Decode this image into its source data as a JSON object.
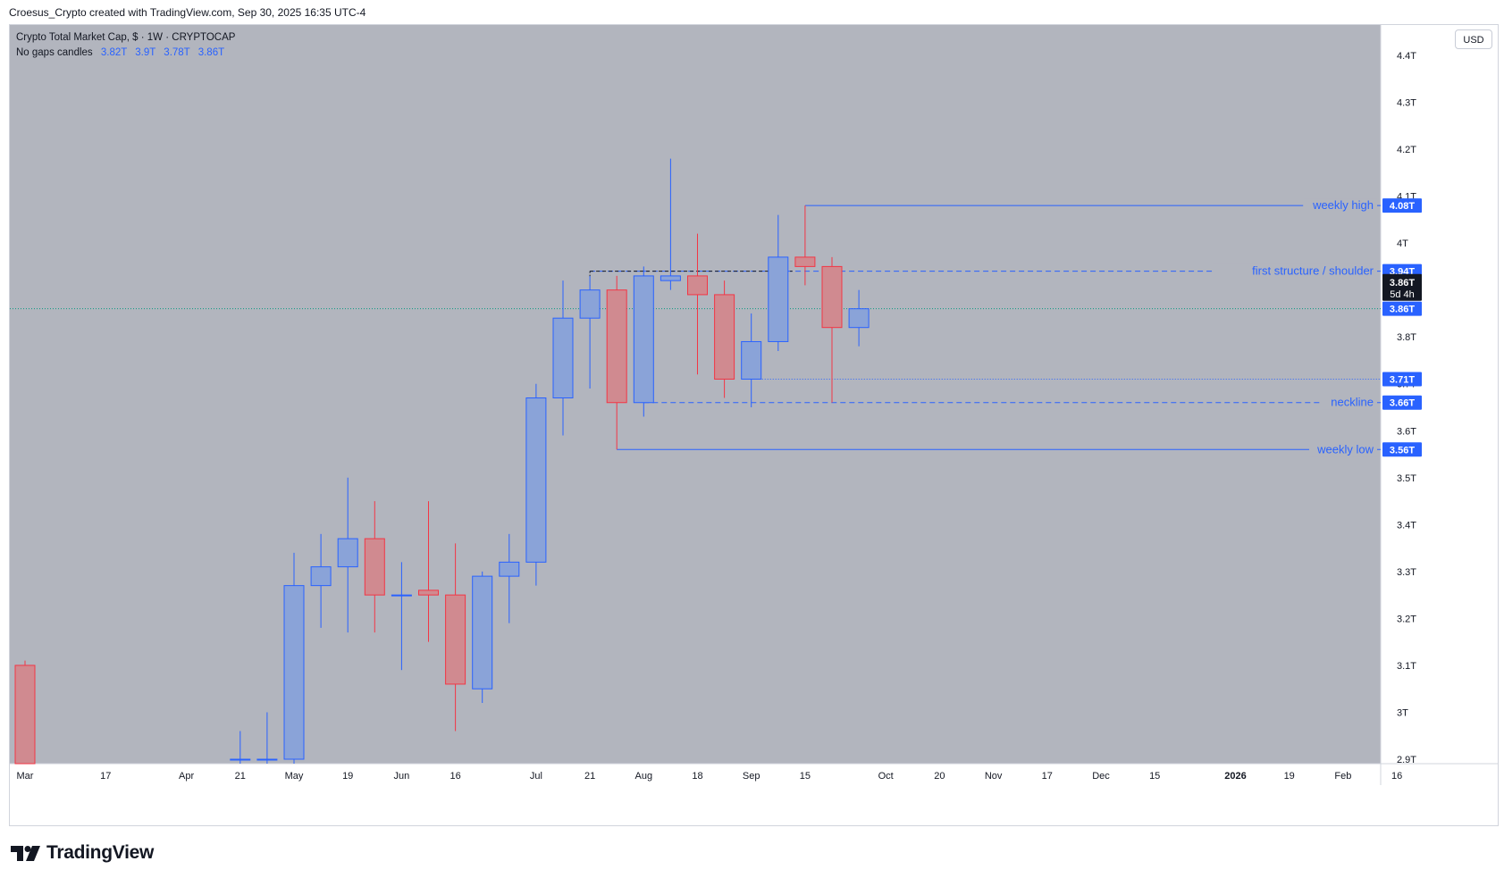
{
  "header": {
    "attribution": "Croesus_Crypto created with TradingView.com, Sep 30, 2025 16:35 UTC-4"
  },
  "legend": {
    "symbol": "Crypto Total Market Cap, $ · 1W · CRYPTOCAP",
    "style_label": "No gaps candles",
    "ohlc": [
      "3.82T",
      "3.9T",
      "3.78T",
      "3.86T"
    ]
  },
  "currency": "USD",
  "brand": {
    "name": "TradingView"
  },
  "colors": {
    "background": "#b2b5be",
    "bull": "#8aa3d8",
    "bull_border": "#2962ff",
    "bear": "#d08a90",
    "bear_border": "#f23645",
    "annotation": "#2962ff",
    "tag": "#2962ff"
  },
  "chart_data": {
    "type": "candlestick",
    "interval": "1W",
    "y_unit": "T",
    "ylim": [
      2.9,
      4.4
    ],
    "y_ticks": [
      {
        "value": 4.4,
        "label": "4.4T"
      },
      {
        "value": 4.3,
        "label": "4.3T"
      },
      {
        "value": 4.2,
        "label": "4.2T"
      },
      {
        "value": 4.1,
        "label": "4.1T"
      },
      {
        "value": 4.0,
        "label": "4T"
      },
      {
        "value": 3.9,
        "label": "3.9T"
      },
      {
        "value": 3.8,
        "label": "3.8T"
      },
      {
        "value": 3.7,
        "label": "3.7T"
      },
      {
        "value": 3.6,
        "label": "3.6T"
      },
      {
        "value": 3.5,
        "label": "3.5T"
      },
      {
        "value": 3.4,
        "label": "3.4T"
      },
      {
        "value": 3.3,
        "label": "3.3T"
      },
      {
        "value": 3.2,
        "label": "3.2T"
      },
      {
        "value": 3.1,
        "label": "3.1T"
      },
      {
        "value": 3.0,
        "label": "3T"
      },
      {
        "value": 2.9,
        "label": "2.9T"
      }
    ],
    "x_ticks": [
      {
        "date": "2025-02-24",
        "label": "Mar"
      },
      {
        "date": "2025-03-17",
        "label": "17"
      },
      {
        "date": "2025-04-07",
        "label": "Apr"
      },
      {
        "date": "2025-04-21",
        "label": "21"
      },
      {
        "date": "2025-05-05",
        "label": "May"
      },
      {
        "date": "2025-05-19",
        "label": "19"
      },
      {
        "date": "2025-06-02",
        "label": "Jun"
      },
      {
        "date": "2025-06-16",
        "label": "16"
      },
      {
        "date": "2025-07-07",
        "label": "Jul"
      },
      {
        "date": "2025-07-21",
        "label": "21"
      },
      {
        "date": "2025-08-04",
        "label": "Aug"
      },
      {
        "date": "2025-08-18",
        "label": "18"
      },
      {
        "date": "2025-09-01",
        "label": "Sep"
      },
      {
        "date": "2025-09-15",
        "label": "15"
      },
      {
        "date": "2025-10-06",
        "label": "Oct"
      },
      {
        "date": "2025-10-20",
        "label": "20"
      },
      {
        "date": "2025-11-03",
        "label": "Nov"
      },
      {
        "date": "2025-11-17",
        "label": "17"
      },
      {
        "date": "2025-12-01",
        "label": "Dec"
      },
      {
        "date": "2025-12-15",
        "label": "15"
      },
      {
        "date": "2026-01-05",
        "label": "2026",
        "bold": true
      },
      {
        "date": "2026-01-19",
        "label": "19"
      },
      {
        "date": "2026-02-02",
        "label": "Feb"
      },
      {
        "date": "2026-02-16",
        "label": "16"
      }
    ],
    "candles": [
      {
        "date": "2025-02-24",
        "open": 3.1,
        "high": 3.11,
        "low": 2.85,
        "close": 2.85
      },
      {
        "date": "2025-04-21",
        "open": 2.9,
        "high": 2.96,
        "low": 2.85,
        "close": 2.9
      },
      {
        "date": "2025-04-28",
        "open": 2.9,
        "high": 3.0,
        "low": 2.85,
        "close": 2.9
      },
      {
        "date": "2025-05-05",
        "open": 2.9,
        "high": 3.34,
        "low": 2.85,
        "close": 3.27
      },
      {
        "date": "2025-05-12",
        "open": 3.27,
        "high": 3.38,
        "low": 3.18,
        "close": 3.31
      },
      {
        "date": "2025-05-19",
        "open": 3.31,
        "high": 3.5,
        "low": 3.17,
        "close": 3.37
      },
      {
        "date": "2025-05-26",
        "open": 3.37,
        "high": 3.45,
        "low": 3.17,
        "close": 3.25
      },
      {
        "date": "2025-06-02",
        "open": 3.25,
        "high": 3.32,
        "low": 3.09,
        "close": 3.25
      },
      {
        "date": "2025-06-09",
        "open": 3.26,
        "high": 3.45,
        "low": 3.15,
        "close": 3.25
      },
      {
        "date": "2025-06-16",
        "open": 3.25,
        "high": 3.36,
        "low": 2.96,
        "close": 3.06
      },
      {
        "date": "2025-06-23",
        "open": 3.05,
        "high": 3.3,
        "low": 3.02,
        "close": 3.29
      },
      {
        "date": "2025-06-30",
        "open": 3.29,
        "high": 3.38,
        "low": 3.19,
        "close": 3.32
      },
      {
        "date": "2025-07-07",
        "open": 3.32,
        "high": 3.7,
        "low": 3.27,
        "close": 3.67
      },
      {
        "date": "2025-07-14",
        "open": 3.67,
        "high": 3.92,
        "low": 3.59,
        "close": 3.84
      },
      {
        "date": "2025-07-21",
        "open": 3.84,
        "high": 3.93,
        "low": 3.69,
        "close": 3.9
      },
      {
        "date": "2025-07-28",
        "open": 3.9,
        "high": 3.93,
        "low": 3.56,
        "close": 3.66
      },
      {
        "date": "2025-08-04",
        "open": 3.66,
        "high": 3.95,
        "low": 3.63,
        "close": 3.93
      },
      {
        "date": "2025-08-11",
        "open": 3.92,
        "high": 4.18,
        "low": 3.9,
        "close": 3.93
      },
      {
        "date": "2025-08-18",
        "open": 3.93,
        "high": 4.02,
        "low": 3.72,
        "close": 3.89
      },
      {
        "date": "2025-08-25",
        "open": 3.89,
        "high": 3.92,
        "low": 3.67,
        "close": 3.71
      },
      {
        "date": "2025-09-01",
        "open": 3.71,
        "high": 3.85,
        "low": 3.65,
        "close": 3.79
      },
      {
        "date": "2025-09-08",
        "open": 3.79,
        "high": 4.06,
        "low": 3.77,
        "close": 3.97
      },
      {
        "date": "2025-09-15",
        "open": 3.97,
        "high": 4.08,
        "low": 3.91,
        "close": 3.95
      },
      {
        "date": "2025-09-22",
        "open": 3.95,
        "high": 3.97,
        "low": 3.66,
        "close": 3.82
      },
      {
        "date": "2025-09-29",
        "open": 3.82,
        "high": 3.9,
        "low": 3.78,
        "close": 3.86
      }
    ],
    "levels": [
      {
        "name": "weekly high",
        "value": 4.08,
        "tag": "4.08T",
        "style": "solid",
        "from": "2025-09-15"
      },
      {
        "name": "first structure / shoulder",
        "value": 3.94,
        "tag": "3.94T",
        "style": "dashed",
        "from": "2025-07-21"
      },
      {
        "name": "neckline",
        "value": 3.66,
        "tag": "3.66T",
        "style": "dashed",
        "from": "2025-08-04"
      },
      {
        "name": "weekly low",
        "value": 3.56,
        "tag": "3.56T",
        "style": "solid",
        "from": "2025-07-28"
      }
    ],
    "untitled_levels": [
      {
        "value": 3.71,
        "tag": "3.71T",
        "style": "dotted",
        "from": "2025-09-01"
      }
    ],
    "black_dashed_line": {
      "from": "2025-07-21",
      "to": "2025-09-08",
      "value": 3.94
    },
    "last_price": {
      "value": 3.86,
      "tag": "3.86T",
      "countdown": "5d 4h"
    },
    "last_price_line_tag": "3.86T"
  }
}
